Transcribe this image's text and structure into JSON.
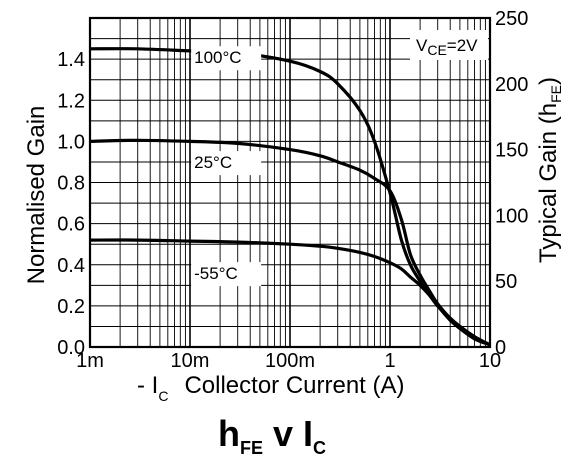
{
  "chart_data": {
    "type": "line",
    "title_main": "h",
    "title_sub": "FE",
    "title_mid": " v I",
    "title_sub2": "C",
    "xlabel_prefix": "- I",
    "xlabel_sub": "C",
    "xlabel_text": "Collector Current (A)",
    "ylabel_left": "Normalised Gain",
    "ylabel_right_main": "Typical Gain (h",
    "ylabel_right_sub": "FE",
    "ylabel_right_end": ")",
    "x_scale": "log",
    "xlim": [
      0.001,
      10
    ],
    "ylim_left": [
      0.0,
      1.6
    ],
    "ylim_right": [
      0,
      250
    ],
    "grid": true,
    "x_tick_labels": [
      "1m",
      "10m",
      "100m",
      "1",
      "10"
    ],
    "y_left_tick_labels": [
      "0.0",
      "0.2",
      "0.4",
      "0.6",
      "0.8",
      "1.0",
      "1.2",
      "1.4"
    ],
    "y_left_ticks": [
      0.0,
      0.2,
      0.4,
      0.6,
      0.8,
      1.0,
      1.2,
      1.4
    ],
    "y_right_tick_labels": [
      "0",
      "50",
      "100",
      "150",
      "200",
      "250"
    ],
    "y_right_ticks": [
      0,
      50,
      100,
      150,
      200,
      250
    ],
    "condition_label": "V",
    "condition_sub": "CE",
    "condition_value": "=2V",
    "series": [
      {
        "name": "100°C",
        "x": [
          0.001,
          0.003,
          0.01,
          0.03,
          0.1,
          0.2,
          0.3,
          0.5,
          0.7,
          1.0,
          1.3,
          1.6,
          2.0,
          2.5,
          3.0,
          4.0,
          5.0,
          7.0,
          10.0
        ],
        "y": [
          1.45,
          1.45,
          1.44,
          1.43,
          1.39,
          1.34,
          1.28,
          1.15,
          1.0,
          0.75,
          0.52,
          0.4,
          0.32,
          0.25,
          0.2,
          0.13,
          0.09,
          0.04,
          0.01
        ]
      },
      {
        "name": "25°C",
        "x": [
          0.001,
          0.003,
          0.01,
          0.03,
          0.1,
          0.2,
          0.3,
          0.5,
          0.7,
          1.0,
          1.3,
          1.6,
          2.0,
          2.5,
          3.0,
          4.0,
          5.0,
          7.0,
          10.0
        ],
        "y": [
          1.0,
          1.005,
          1.0,
          0.99,
          0.96,
          0.93,
          0.9,
          0.86,
          0.82,
          0.76,
          0.62,
          0.45,
          0.35,
          0.27,
          0.21,
          0.14,
          0.1,
          0.05,
          0.01
        ]
      },
      {
        "name": "-55°C",
        "x": [
          0.001,
          0.003,
          0.01,
          0.03,
          0.1,
          0.2,
          0.3,
          0.5,
          0.7,
          1.0,
          1.3,
          1.6,
          2.0,
          2.5,
          3.0,
          4.0,
          5.0,
          7.0,
          10.0
        ],
        "y": [
          0.52,
          0.52,
          0.515,
          0.51,
          0.5,
          0.49,
          0.48,
          0.46,
          0.44,
          0.41,
          0.38,
          0.34,
          0.3,
          0.25,
          0.2,
          0.14,
          0.1,
          0.05,
          0.01
        ]
      }
    ],
    "curve_labels": [
      {
        "series": "100°C",
        "text": "100°C",
        "x": 0.011,
        "y": 1.38
      },
      {
        "series": "25°C",
        "text": "25°C",
        "x": 0.011,
        "y": 0.87
      },
      {
        "series": "-55°C",
        "text": "-55°C",
        "x": 0.011,
        "y": 0.33
      }
    ]
  }
}
